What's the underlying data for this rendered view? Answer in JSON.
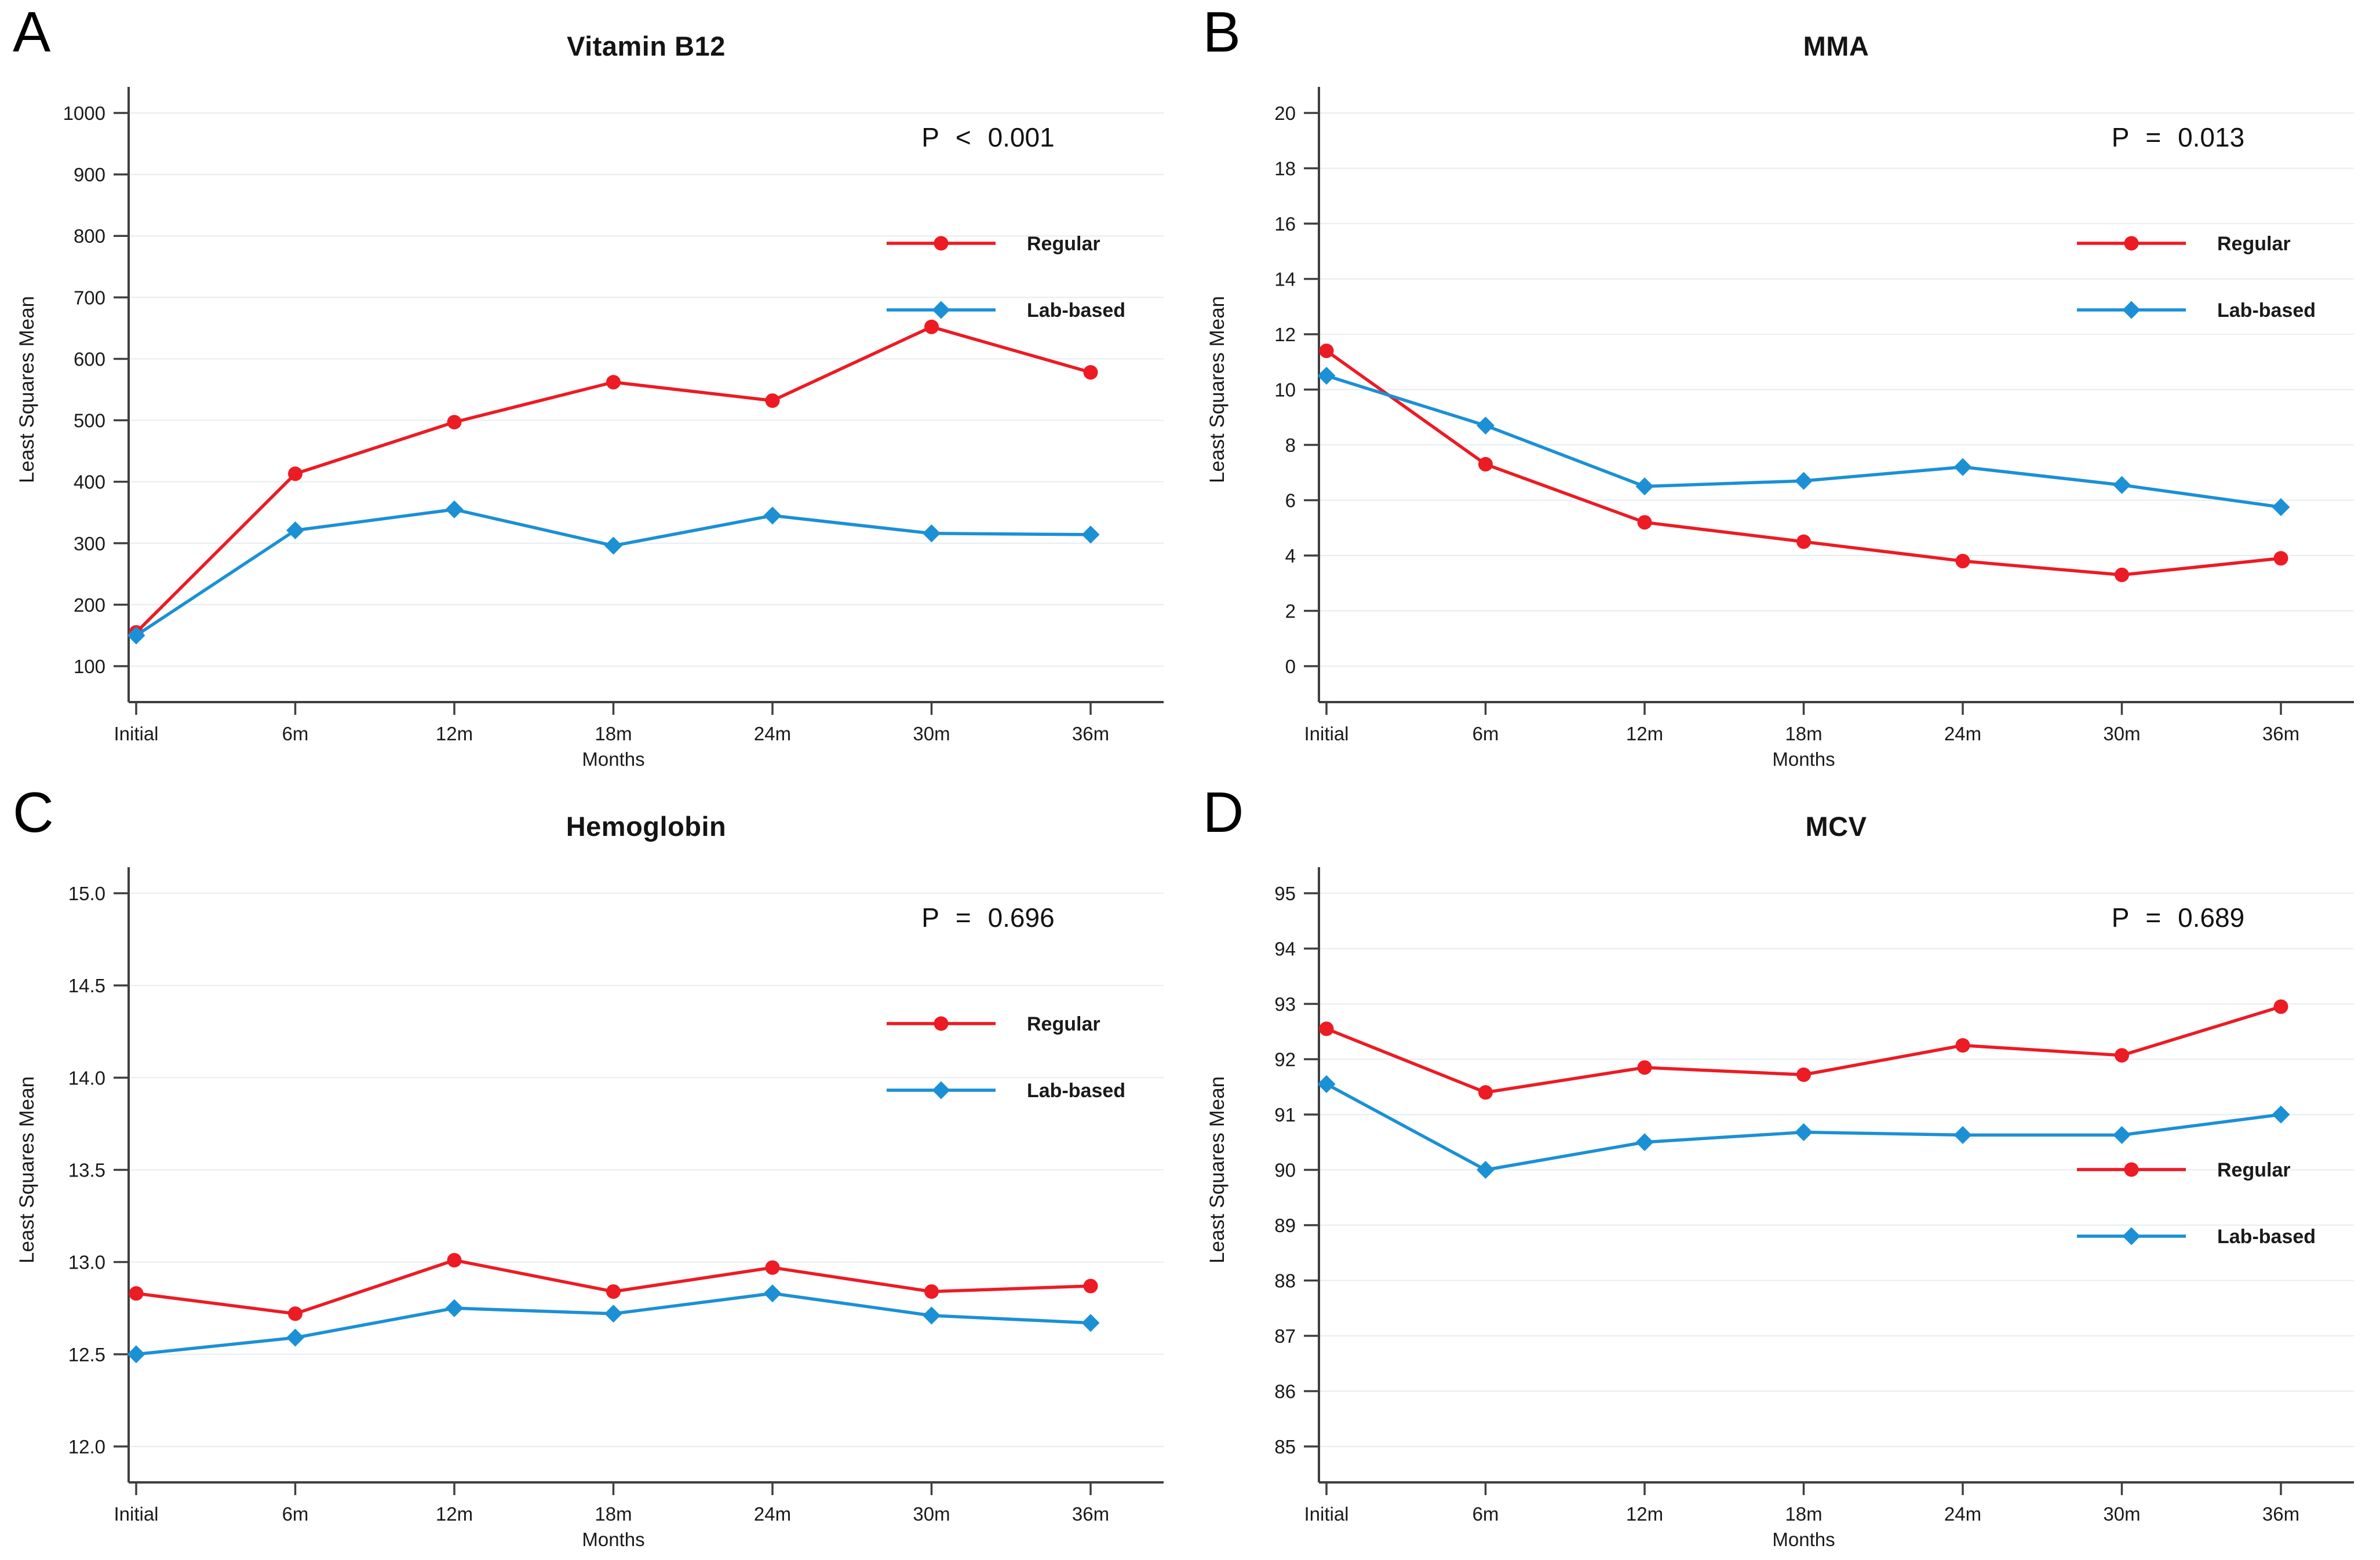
{
  "figure": {
    "background": "#ffffff",
    "grid_color": "#e9eef0",
    "axis_color": "#3f3f3f",
    "text_color": "#1a1a1a",
    "regular_color": "#ec1b24",
    "lab_color": "#1b90d5"
  },
  "chart_data": [
    {
      "panel_letter": "A",
      "type": "line",
      "title": "Vitamin B12",
      "p_label": "P < 0.001",
      "xlabel": "Months",
      "ylabel": "Least Squares Mean",
      "categories": [
        "Initial",
        "6m",
        "12m",
        "18m",
        "24m",
        "30m",
        "36m"
      ],
      "ylim": [
        100,
        1000
      ],
      "yticks": [
        100,
        200,
        300,
        400,
        500,
        600,
        700,
        800,
        900,
        1000
      ],
      "ytick_decimals": 0,
      "legend_position": "top-right",
      "series": [
        {
          "name": "Regular",
          "color": "#ec1b24",
          "marker": "circle",
          "values": [
            155,
            413,
            497,
            562,
            532,
            652,
            578
          ]
        },
        {
          "name": "Lab-based",
          "color": "#1b90d5",
          "marker": "diamond",
          "values": [
            150,
            321,
            355,
            296,
            345,
            316,
            314
          ]
        }
      ]
    },
    {
      "panel_letter": "B",
      "type": "line",
      "title": "MMA",
      "p_label": "P = 0.013",
      "xlabel": "Months",
      "ylabel": "Least Squares Mean",
      "categories": [
        "Initial",
        "6m",
        "12m",
        "18m",
        "24m",
        "30m",
        "36m"
      ],
      "ylim": [
        0,
        20
      ],
      "yticks": [
        0,
        2,
        4,
        6,
        8,
        10,
        12,
        14,
        16,
        18,
        20
      ],
      "ytick_decimals": 0,
      "legend_position": "top-right",
      "series": [
        {
          "name": "Regular",
          "color": "#ec1b24",
          "marker": "circle",
          "values": [
            11.4,
            7.3,
            5.2,
            4.5,
            3.8,
            3.3,
            3.9
          ]
        },
        {
          "name": "Lab-based",
          "color": "#1b90d5",
          "marker": "diamond",
          "values": [
            10.5,
            8.7,
            6.5,
            6.7,
            7.2,
            6.55,
            5.75
          ]
        }
      ]
    },
    {
      "panel_letter": "C",
      "type": "line",
      "title": "Hemoglobin",
      "p_label": "P = 0.696",
      "xlabel": "Months",
      "ylabel": "Least Squares Mean",
      "categories": [
        "Initial",
        "6m",
        "12m",
        "18m",
        "24m",
        "30m",
        "36m"
      ],
      "ylim": [
        12,
        15
      ],
      "yticks": [
        12.0,
        12.5,
        13.0,
        13.5,
        14.0,
        14.5,
        15.0
      ],
      "ytick_decimals": 1,
      "legend_position": "top-right",
      "series": [
        {
          "name": "Regular",
          "color": "#ec1b24",
          "marker": "circle",
          "values": [
            12.83,
            12.72,
            13.01,
            12.84,
            12.97,
            12.84,
            12.87
          ]
        },
        {
          "name": "Lab-based",
          "color": "#1b90d5",
          "marker": "diamond",
          "values": [
            12.5,
            12.59,
            12.75,
            12.72,
            12.83,
            12.71,
            12.67
          ]
        }
      ]
    },
    {
      "panel_letter": "D",
      "type": "line",
      "title": "MCV",
      "p_label": "P = 0.689",
      "xlabel": "Months",
      "ylabel": "Least Squares Mean",
      "categories": [
        "Initial",
        "6m",
        "12m",
        "18m",
        "24m",
        "30m",
        "36m"
      ],
      "ylim": [
        85,
        95
      ],
      "yticks": [
        85,
        86,
        87,
        88,
        89,
        90,
        91,
        92,
        93,
        94,
        95
      ],
      "ytick_decimals": 0,
      "legend_position": "bottom-right",
      "series": [
        {
          "name": "Regular",
          "color": "#ec1b24",
          "marker": "circle",
          "values": [
            92.55,
            91.4,
            91.85,
            91.72,
            92.25,
            92.07,
            92.95
          ]
        },
        {
          "name": "Lab-based",
          "color": "#1b90d5",
          "marker": "diamond",
          "values": [
            91.55,
            90.0,
            90.5,
            90.68,
            90.63,
            90.63,
            91.0
          ]
        }
      ]
    }
  ]
}
